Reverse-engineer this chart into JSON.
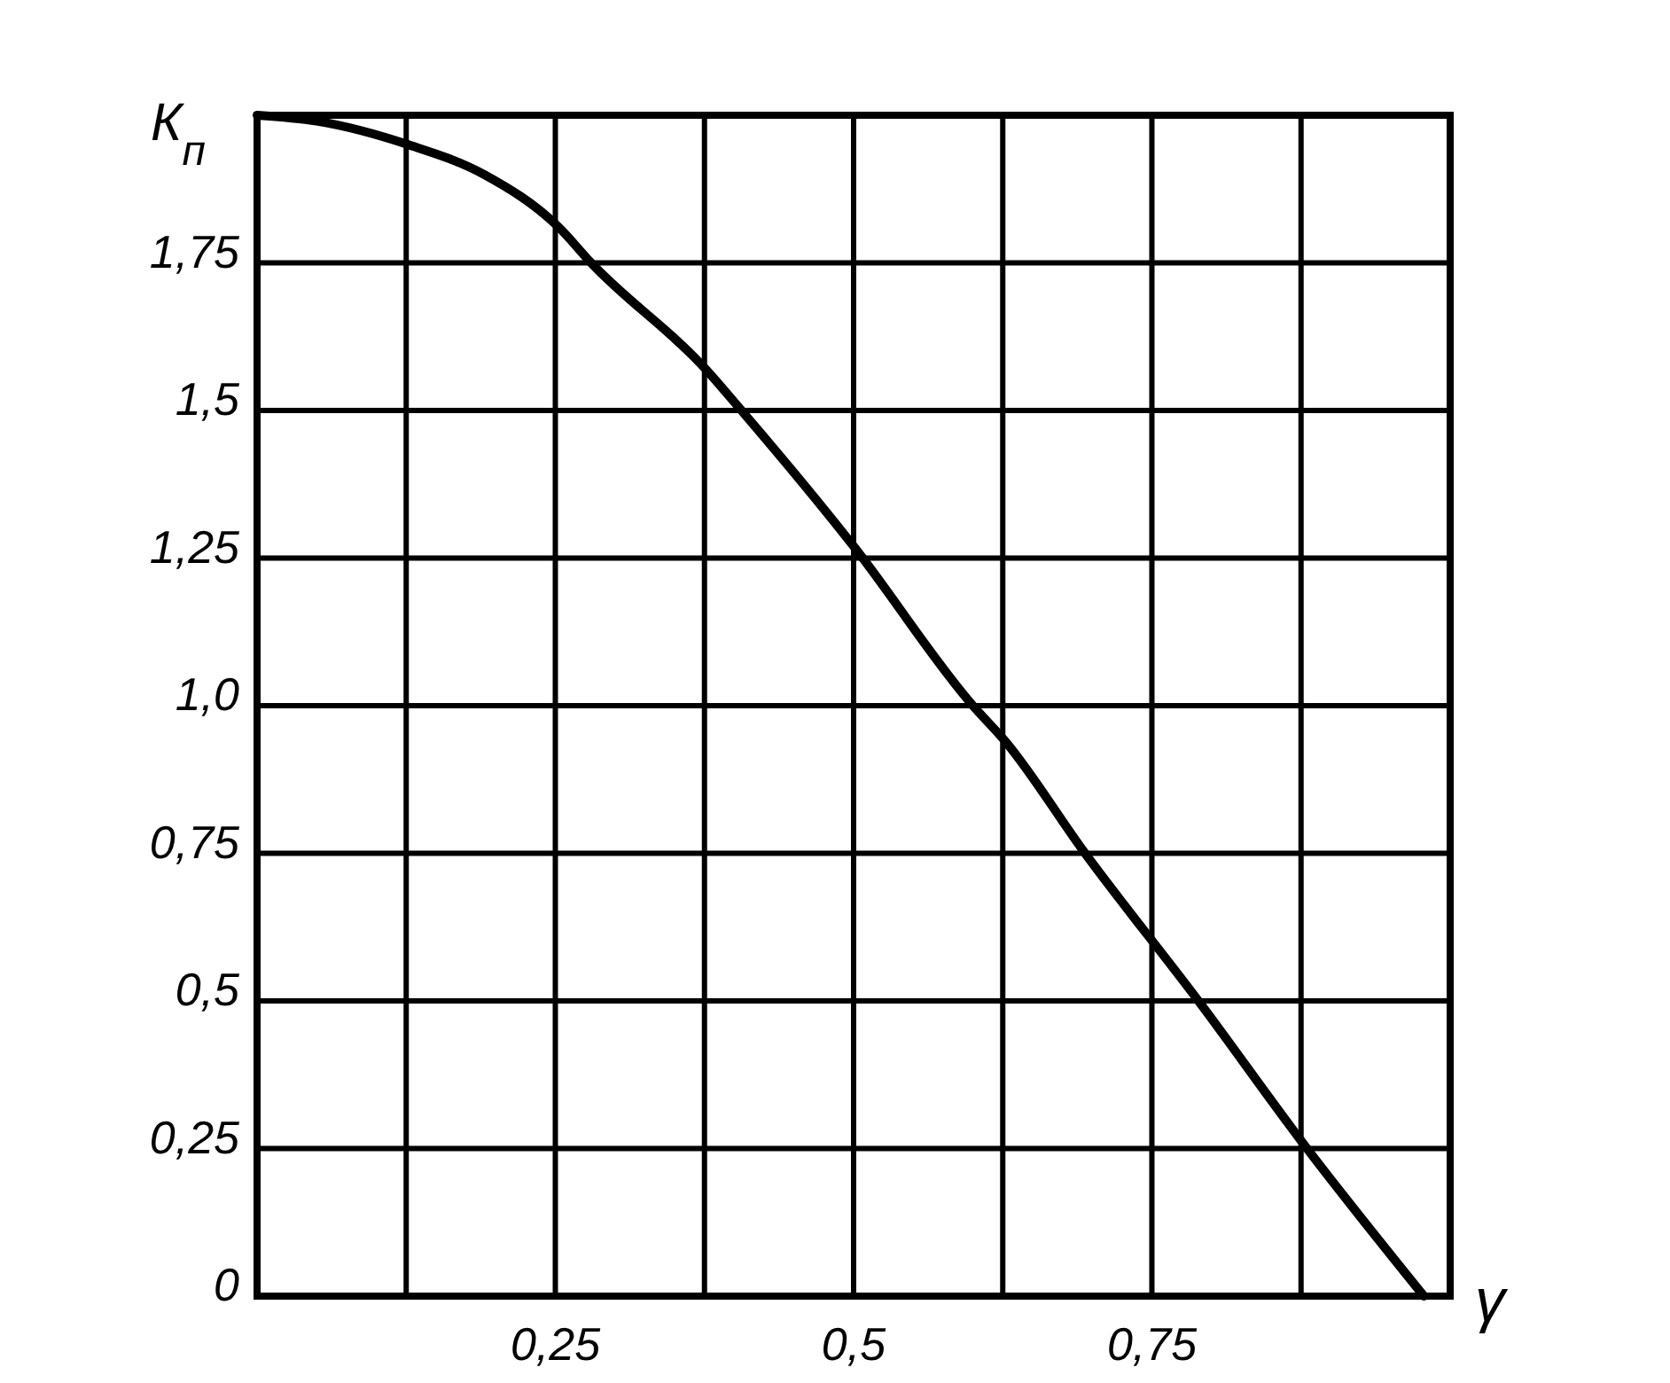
{
  "chart_data": {
    "type": "line",
    "xlabel": "γ",
    "ylabel": "К$_{п}$",
    "x": [
      0,
      0.05,
      0.127,
      0.19,
      0.253,
      0.28,
      0.376,
      0.406,
      0.5,
      0.6,
      0.627,
      0.694,
      0.789,
      0.88,
      0.978
    ],
    "series": [
      {
        "color": "#000000",
        "values": [
          2.0,
          1.99,
          1.95,
          1.9,
          1.81,
          1.75,
          1.57,
          1.5,
          1.27,
          1.0,
          0.94,
          0.75,
          0.5,
          0.25,
          0
        ]
      }
    ],
    "xlim": [
      0,
      1
    ],
    "ylim": [
      0,
      2
    ],
    "xticks": [
      {
        "value": 0,
        "label": null
      },
      {
        "value": 0.125,
        "label": null
      },
      {
        "value": 0.25,
        "label": "0,25"
      },
      {
        "value": 0.375,
        "label": null
      },
      {
        "value": 0.5,
        "label": "0,5"
      },
      {
        "value": 0.625,
        "label": null
      },
      {
        "value": 0.75,
        "label": "0,75"
      },
      {
        "value": 0.875,
        "label": null
      },
      {
        "value": 1,
        "label": null
      }
    ],
    "yticks": [
      0,
      {
        "value": 0.25,
        "label": "0,25"
      },
      {
        "value": 0.5,
        "label": "0,5"
      },
      {
        "value": 0.75,
        "label": "0,75"
      },
      {
        "value": 1,
        "label": "1,0"
      },
      {
        "value": 1.25,
        "label": "1,25"
      },
      {
        "value": 1.5,
        "label": "1,5"
      },
      {
        "value": 1.75,
        "label": "1,75"
      },
      {
        "value": 2,
        "label": null
      }
    ],
    "grid": true,
    "marker": "none",
    "line_style": "solid"
  }
}
